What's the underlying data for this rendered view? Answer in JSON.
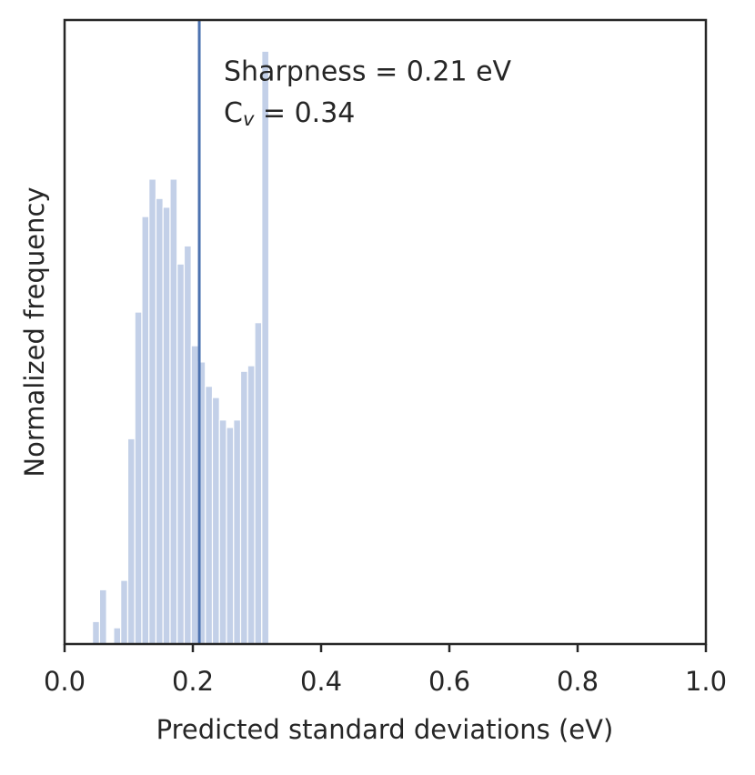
{
  "chart_data": {
    "type": "histogram",
    "xlabel": "Predicted standard deviations (eV)",
    "ylabel": "Normalized frequency",
    "bins": [
      0.0435,
      0.0545,
      0.0655,
      0.0765,
      0.0875,
      0.0985,
      0.1095,
      0.1205,
      0.1315,
      0.1425,
      0.1535,
      0.1645,
      0.1755,
      0.1865,
      0.1975,
      0.2085,
      0.2195,
      0.2305,
      0.2415,
      0.2525,
      0.2635,
      0.2745,
      0.2855,
      0.2965,
      0.3075,
      0.3185
    ],
    "values": [
      0.036,
      0.087,
      0,
      0.026,
      0.102,
      0.329,
      0.532,
      0.685,
      0.745,
      0.714,
      0.7,
      0.745,
      0.609,
      0.638,
      0.478,
      0.452,
      0.413,
      0.395,
      0.359,
      0.347,
      0.359,
      0.437,
      0.446,
      0.515,
      0.95
    ],
    "color": "#c3d0e8",
    "vline": {
      "x": 0.21,
      "color": "#4c72b0"
    },
    "annotation": "Sharpness = 0.21 eV",
    "annotation_cv": [
      "C",
      "v",
      " = 0.34"
    ],
    "xlim": [
      0,
      1
    ],
    "ylim": [
      0,
      1
    ],
    "xticks": [
      {
        "value": 0,
        "label": "0.0"
      },
      0.2,
      0.4,
      0.6,
      0.8,
      {
        "value": 1,
        "label": "1.0"
      }
    ]
  }
}
